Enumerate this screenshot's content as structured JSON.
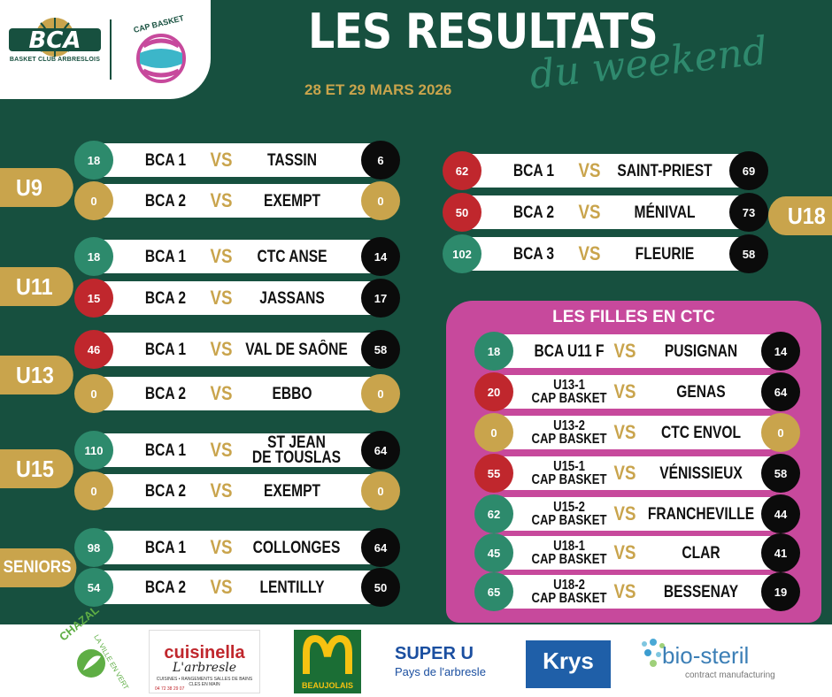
{
  "header": {
    "logo_bca_text": "BCA",
    "logo_bca_sub": "BASKET CLUB ARBRESLOIS",
    "logo_cap_text": "CAP BASKET",
    "title": "LES RESULTATS",
    "subtitle": "du weekend",
    "date": "28 ET 29 MARS 2026"
  },
  "vs_label": "VS",
  "categories": {
    "u9": "U9",
    "u11": "U11",
    "u13": "U13",
    "u15": "U15",
    "seniors": "SENIORS",
    "u18": "U18"
  },
  "matches": [
    {
      "home": "BCA 1",
      "away": "TASSIN",
      "home_score": "18",
      "away_score": "6"
    },
    {
      "home": "BCA 2",
      "away": "EXEMPT",
      "home_score": "0",
      "away_score": "0"
    },
    {
      "home": "BCA 1",
      "away": "CTC ANSE",
      "home_score": "18",
      "away_score": "14"
    },
    {
      "home": "BCA 2",
      "away": "JASSANS",
      "home_score": "15",
      "away_score": "17"
    },
    {
      "home": "BCA 1",
      "away": "VAL DE SAÔNE",
      "home_score": "46",
      "away_score": "58"
    },
    {
      "home": "BCA 2",
      "away": "EBBO",
      "home_score": "0",
      "away_score": "0"
    },
    {
      "home": "BCA 1",
      "away_line1": "ST JEAN",
      "away_line2": "DE TOUSLAS",
      "home_score": "110",
      "away_score": "64"
    },
    {
      "home": "BCA 2",
      "away": "EXEMPT",
      "home_score": "0",
      "away_score": "0"
    },
    {
      "home": "BCA 1",
      "away": "COLLONGES",
      "home_score": "98",
      "away_score": "64"
    },
    {
      "home": "BCA 2",
      "away": "LENTILLY",
      "home_score": "54",
      "away_score": "50"
    },
    {
      "home": "BCA 1",
      "away": "SAINT-PRIEST",
      "home_score": "62",
      "away_score": "69"
    },
    {
      "home": "BCA 2",
      "away": "MÉNIVAL",
      "home_score": "50",
      "away_score": "73"
    },
    {
      "home": "BCA 3",
      "away": "FLEURIE",
      "home_score": "102",
      "away_score": "58"
    }
  ],
  "filles": {
    "title": "LES FILLES EN CTC",
    "matches": [
      {
        "home": "BCA U11 F",
        "away": "PUSIGNAN",
        "home_score": "18",
        "away_score": "14"
      },
      {
        "home_line1": "U13-1",
        "home_line2": "CAP BASKET",
        "away": "GENAS",
        "home_score": "20",
        "away_score": "64"
      },
      {
        "home_line1": "U13-2",
        "home_line2": "CAP BASKET",
        "away": "CTC ENVOL",
        "home_score": "0",
        "away_score": "0"
      },
      {
        "home_line1": "U15-1",
        "home_line2": "CAP BASKET",
        "away": "VÉNISSIEUX",
        "home_score": "55",
        "away_score": "58"
      },
      {
        "home_line1": "U15-2",
        "home_line2": "CAP BASKET",
        "away": "FRANCHEVILLE",
        "home_score": "62",
        "away_score": "44"
      },
      {
        "home_line1": "U18-1",
        "home_line2": "CAP BASKET",
        "away": "CLAR",
        "home_score": "45",
        "away_score": "41"
      },
      {
        "home_line1": "U18-2",
        "home_line2": "CAP BASKET",
        "away": "BESSENAY",
        "home_score": "65",
        "away_score": "19"
      }
    ]
  },
  "sponsors": {
    "chazal": "CHAZAL",
    "chazal_tag": "LA VILLE EN VERT",
    "cuisinella_name": "cuisinella",
    "cuisinella_city": "L'arbresle",
    "cuisinella_tag": "CUISINES • RANGEMENTS SALLES DE BAINS CLES EN MAIN",
    "cuisinella_phone": "04 72 38 29 07",
    "mcdonalds": "BEAUJOLAIS",
    "super_u": "SUPER U",
    "super_u_sub": "Pays de l'arbresle",
    "krys": "Krys",
    "biosteril": "bio-steril",
    "biosteril_sub": "contract manufacturing"
  },
  "colors": {
    "background": "#17503f",
    "gold": "#c9a44c",
    "green_score": "#2d8a6c",
    "red_score": "#c0272d",
    "black_score": "#0b0b0b",
    "filles_panel": "#c7499c"
  }
}
